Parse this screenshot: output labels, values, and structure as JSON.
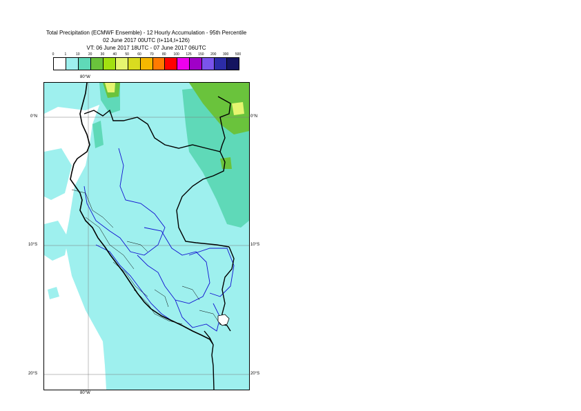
{
  "titles": {
    "line1": "Total Precipitation (ECMWF Ensemble) - 12 Hourly Accumulation - 95th Percentile",
    "line2": "02 June 2017 00UTC (t+114,t+126)",
    "line3": "VT: 06 June 2017 18UTC - 07 June 2017 06UTC"
  },
  "legend": {
    "ticks": [
      "0",
      "1",
      "10",
      "20",
      "30",
      "40",
      "50",
      "60",
      "70",
      "80",
      "100",
      "125",
      "150",
      "200",
      "300",
      "500"
    ],
    "colors": [
      "#ffffff",
      "#9ef0ee",
      "#5fd9b8",
      "#6ac33c",
      "#a2e010",
      "#e6f570",
      "#d9dc20",
      "#f5b800",
      "#ff7a00",
      "#ff0000",
      "#ee00ee",
      "#a000c8",
      "#7a54ec",
      "#2c2ca8",
      "#141460"
    ]
  },
  "axes": {
    "lon_top": "80°W",
    "lon_bottom": "80°W",
    "lat_left": [
      "0°N",
      "10°S",
      "20°S"
    ],
    "lat_right": [
      "0°N",
      "10°S",
      "20°S"
    ]
  },
  "map": {
    "colors": {
      "ocean": "#ffffff",
      "light": "#9ef0ee",
      "green": "#5fd9b8",
      "olive": "#6ac33c",
      "yellow": "#e6f570",
      "coast": "#000000",
      "border": "#000000",
      "region": "#1010d0",
      "inner": "#000000",
      "grid": "#7a7a7a"
    }
  }
}
